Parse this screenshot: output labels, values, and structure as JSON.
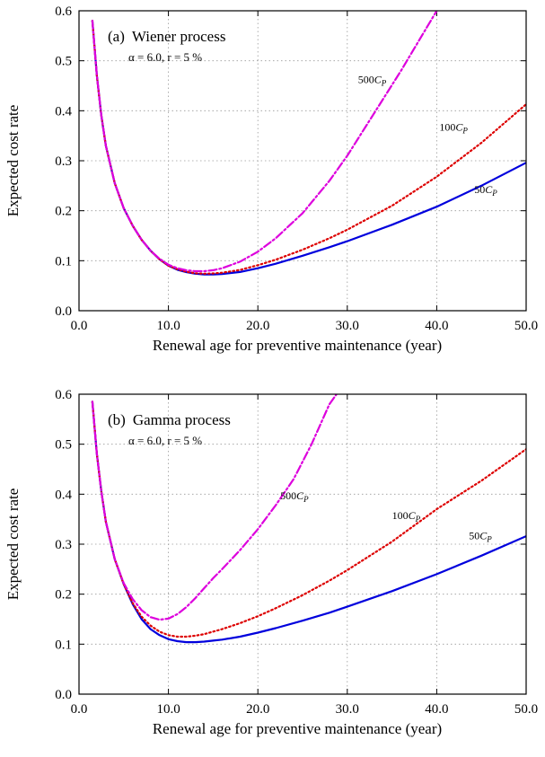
{
  "chart_data": [
    {
      "type": "line",
      "panel": "(a)",
      "title": "Wiener process",
      "subtitle": "α = 6.0,  r = 5 %",
      "xlabel": "Renewal age for preventive maintenance (year)",
      "ylabel": "Expected cost rate",
      "xlim": [
        0,
        50
      ],
      "ylim": [
        0,
        0.6
      ],
      "xticks": [
        "0.0",
        "10.0",
        "20.0",
        "30.0",
        "40.0",
        "50.0"
      ],
      "yticks": [
        "0.0",
        "0.1",
        "0.2",
        "0.3",
        "0.4",
        "0.5",
        "0.6"
      ],
      "grid": true,
      "series": [
        {
          "name": "50C_P",
          "color": "#0000dd",
          "style": "solid",
          "label": {
            "main": "50",
            "var": "C",
            "sub": "P",
            "at": [
              44.2,
              0.235
            ]
          },
          "points": [
            [
              1.5,
              0.58
            ],
            [
              2,
              0.47
            ],
            [
              2.5,
              0.39
            ],
            [
              3,
              0.33
            ],
            [
              4,
              0.255
            ],
            [
              5,
              0.205
            ],
            [
              6,
              0.17
            ],
            [
              7,
              0.142
            ],
            [
              8,
              0.12
            ],
            [
              9,
              0.103
            ],
            [
              10,
              0.09
            ],
            [
              11,
              0.082
            ],
            [
              12,
              0.077
            ],
            [
              13,
              0.074
            ],
            [
              14,
              0.0725
            ],
            [
              15,
              0.0725
            ],
            [
              16,
              0.0735
            ],
            [
              18,
              0.0775
            ],
            [
              20,
              0.085
            ],
            [
              22,
              0.094
            ],
            [
              25,
              0.11
            ],
            [
              28,
              0.127
            ],
            [
              30,
              0.139
            ],
            [
              35,
              0.172
            ],
            [
              40,
              0.208
            ],
            [
              45,
              0.25
            ],
            [
              50,
              0.296
            ]
          ]
        },
        {
          "name": "100C_P",
          "color": "#dd0000",
          "style": "dotted",
          "label": {
            "main": "100",
            "var": "C",
            "sub": "P",
            "at": [
              40.3,
              0.36
            ]
          },
          "points": [
            [
              1.5,
              0.58
            ],
            [
              2,
              0.47
            ],
            [
              2.5,
              0.39
            ],
            [
              3,
              0.33
            ],
            [
              4,
              0.255
            ],
            [
              5,
              0.205
            ],
            [
              6,
              0.17
            ],
            [
              7,
              0.142
            ],
            [
              8,
              0.12
            ],
            [
              9,
              0.103
            ],
            [
              10,
              0.09
            ],
            [
              11,
              0.083
            ],
            [
              12,
              0.078
            ],
            [
              13,
              0.075
            ],
            [
              14,
              0.074
            ],
            [
              15,
              0.0745
            ],
            [
              16,
              0.076
            ],
            [
              18,
              0.0815
            ],
            [
              20,
              0.091
            ],
            [
              22,
              0.102
            ],
            [
              25,
              0.122
            ],
            [
              28,
              0.145
            ],
            [
              30,
              0.162
            ],
            [
              35,
              0.21
            ],
            [
              40,
              0.268
            ],
            [
              45,
              0.336
            ],
            [
              50,
              0.413
            ]
          ]
        },
        {
          "name": "500C_P",
          "color": "#dd00dd",
          "style": "dashdot",
          "label": {
            "main": "500",
            "var": "C",
            "sub": "P",
            "at": [
              31.2,
              0.455
            ]
          },
          "points": [
            [
              1.5,
              0.58
            ],
            [
              2,
              0.47
            ],
            [
              2.5,
              0.39
            ],
            [
              3,
              0.33
            ],
            [
              4,
              0.255
            ],
            [
              5,
              0.205
            ],
            [
              6,
              0.17
            ],
            [
              7,
              0.142
            ],
            [
              8,
              0.12
            ],
            [
              9,
              0.104
            ],
            [
              10,
              0.092
            ],
            [
              11,
              0.085
            ],
            [
              12,
              0.081
            ],
            [
              13,
              0.079
            ],
            [
              14,
              0.079
            ],
            [
              15,
              0.081
            ],
            [
              16,
              0.085
            ],
            [
              18,
              0.098
            ],
            [
              20,
              0.118
            ],
            [
              22,
              0.145
            ],
            [
              25,
              0.195
            ],
            [
              28,
              0.26
            ],
            [
              30,
              0.31
            ],
            [
              33,
              0.395
            ],
            [
              36,
              0.48
            ],
            [
              38,
              0.54
            ],
            [
              40,
              0.6
            ]
          ]
        }
      ]
    },
    {
      "type": "line",
      "panel": "(b)",
      "title": "Gamma process",
      "subtitle": "α = 6.0,  r = 5 %",
      "xlabel": "Renewal age for preventive maintenance (year)",
      "ylabel": "Expected cost rate",
      "xlim": [
        0,
        50
      ],
      "ylim": [
        0,
        0.6
      ],
      "xticks": [
        "0.0",
        "10.0",
        "20.0",
        "30.0",
        "40.0",
        "50.0"
      ],
      "yticks": [
        "0.0",
        "0.1",
        "0.2",
        "0.3",
        "0.4",
        "0.5",
        "0.6"
      ],
      "grid": true,
      "series": [
        {
          "name": "50C_P",
          "color": "#0000dd",
          "style": "solid",
          "label": {
            "main": "50",
            "var": "C",
            "sub": "P",
            "at": [
              43.6,
              0.31
            ]
          },
          "points": [
            [
              1.5,
              0.585
            ],
            [
              2,
              0.48
            ],
            [
              2.5,
              0.405
            ],
            [
              3,
              0.345
            ],
            [
              4,
              0.27
            ],
            [
              5,
              0.22
            ],
            [
              6,
              0.18
            ],
            [
              7,
              0.15
            ],
            [
              8,
              0.13
            ],
            [
              9,
              0.118
            ],
            [
              10,
              0.11
            ],
            [
              11,
              0.106
            ],
            [
              12,
              0.104
            ],
            [
              13,
              0.104
            ],
            [
              14,
              0.105
            ],
            [
              15,
              0.107
            ],
            [
              16,
              0.109
            ],
            [
              18,
              0.115
            ],
            [
              20,
              0.123
            ],
            [
              22,
              0.132
            ],
            [
              25,
              0.147
            ],
            [
              28,
              0.163
            ],
            [
              30,
              0.175
            ],
            [
              35,
              0.206
            ],
            [
              40,
              0.24
            ],
            [
              45,
              0.277
            ],
            [
              50,
              0.316
            ]
          ]
        },
        {
          "name": "100C_P",
          "color": "#dd0000",
          "style": "dotted",
          "label": {
            "main": "100",
            "var": "C",
            "sub": "P",
            "at": [
              35.0,
              0.35
            ]
          },
          "points": [
            [
              1.5,
              0.585
            ],
            [
              2,
              0.48
            ],
            [
              2.5,
              0.405
            ],
            [
              3,
              0.345
            ],
            [
              4,
              0.27
            ],
            [
              5,
              0.22
            ],
            [
              6,
              0.182
            ],
            [
              7,
              0.155
            ],
            [
              8,
              0.137
            ],
            [
              9,
              0.125
            ],
            [
              10,
              0.118
            ],
            [
              11,
              0.115
            ],
            [
              12,
              0.115
            ],
            [
              13,
              0.117
            ],
            [
              14,
              0.12
            ],
            [
              15,
              0.125
            ],
            [
              16,
              0.13
            ],
            [
              18,
              0.142
            ],
            [
              20,
              0.156
            ],
            [
              22,
              0.172
            ],
            [
              25,
              0.198
            ],
            [
              28,
              0.227
            ],
            [
              30,
              0.248
            ],
            [
              35,
              0.305
            ],
            [
              40,
              0.37
            ],
            [
              45,
              0.427
            ],
            [
              50,
              0.49
            ]
          ]
        },
        {
          "name": "500C_P",
          "color": "#dd00dd",
          "style": "dashdot",
          "label": {
            "main": "500",
            "var": "C",
            "sub": "P",
            "at": [
              22.5,
              0.39
            ]
          },
          "points": [
            [
              1.5,
              0.585
            ],
            [
              2,
              0.48
            ],
            [
              2.5,
              0.405
            ],
            [
              3,
              0.345
            ],
            [
              4,
              0.27
            ],
            [
              5,
              0.222
            ],
            [
              6,
              0.19
            ],
            [
              7,
              0.168
            ],
            [
              8,
              0.154
            ],
            [
              9,
              0.149
            ],
            [
              10,
              0.151
            ],
            [
              11,
              0.16
            ],
            [
              12,
              0.174
            ],
            [
              13,
              0.192
            ],
            [
              14,
              0.212
            ],
            [
              15,
              0.232
            ],
            [
              16,
              0.25
            ],
            [
              18,
              0.288
            ],
            [
              20,
              0.33
            ],
            [
              22,
              0.378
            ],
            [
              24,
              0.43
            ],
            [
              26,
              0.5
            ],
            [
              28,
              0.58
            ],
            [
              28.8,
              0.6
            ]
          ]
        }
      ]
    }
  ]
}
